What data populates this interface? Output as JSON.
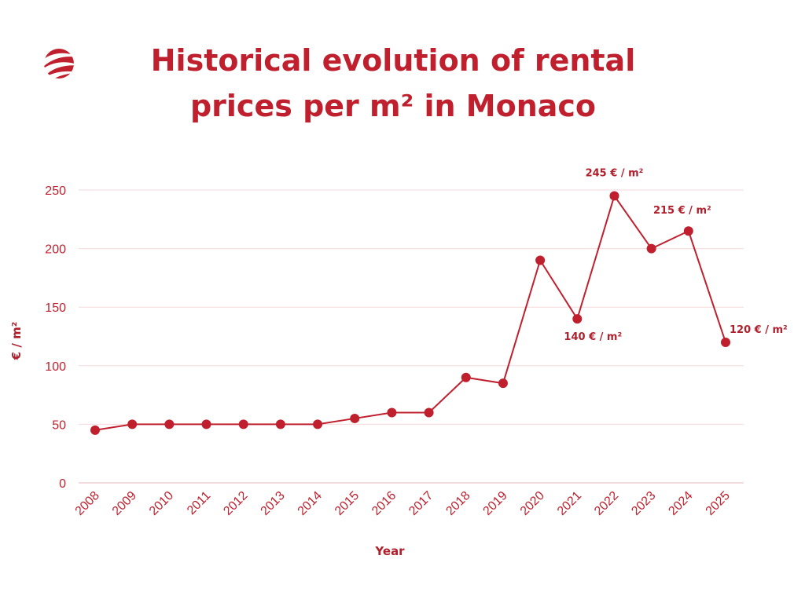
{
  "title_lines": [
    "Historical evolution of rental",
    "prices per m² in Monaco"
  ],
  "colors": {
    "accent": "#c0202e",
    "grid": "#f6d9dc",
    "axis": "#e6b8bd"
  },
  "logo": {
    "icon": "swirl-globe-logo"
  },
  "chart_data": {
    "type": "line",
    "title": "Historical evolution of rental prices per m² in Monaco",
    "xlabel": "Year",
    "ylabel": "€ / m²",
    "ylim": [
      0,
      250
    ],
    "yticks": [
      0,
      50,
      100,
      150,
      200,
      250
    ],
    "grid": true,
    "x": [
      "2008",
      "2009",
      "2010",
      "2011",
      "2012",
      "2013",
      "2014",
      "2015",
      "2016",
      "2017",
      "2018",
      "2019",
      "2020",
      "2021",
      "2022",
      "2023",
      "2024",
      "2025"
    ],
    "series": [
      {
        "values": [
          45,
          50,
          50,
          50,
          50,
          50,
          50,
          55,
          60,
          60,
          90,
          85,
          190,
          140,
          245,
          200,
          215,
          120
        ]
      }
    ],
    "annotations": [
      {
        "x": "2022",
        "text": "245 € / m²"
      },
      {
        "x": "2024",
        "text": "215 € / m²"
      },
      {
        "x": "2021",
        "text": "140 € / m²"
      },
      {
        "x": "2025",
        "text": "120 € / m²"
      }
    ]
  }
}
